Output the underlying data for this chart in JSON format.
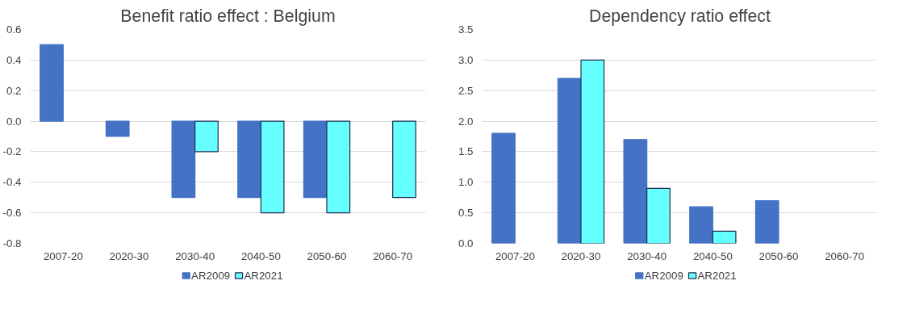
{
  "chart_data": [
    {
      "type": "bar",
      "title": "Benefit ratio effect : Belgium",
      "categories": [
        "2007-20",
        "2020-30",
        "2030-40",
        "2040-50",
        "2050-60",
        "2060-70"
      ],
      "series": [
        {
          "name": "AR2009",
          "color": "#4472c4",
          "values": [
            0.5,
            -0.1,
            -0.5,
            -0.5,
            -0.5,
            null
          ]
        },
        {
          "name": "AR2021",
          "color": "#66ffff",
          "values": [
            null,
            null,
            -0.2,
            -0.6,
            -0.6,
            -0.5
          ]
        }
      ],
      "ylim": [
        -0.8,
        0.6
      ],
      "yticks": [
        {
          "value": -0.8,
          "label": "-0.8"
        },
        {
          "value": -0.6,
          "label": "-0.6"
        },
        {
          "value": -0.4,
          "label": "-0.4"
        },
        {
          "value": -0.2,
          "label": "-0.2"
        },
        {
          "value": 0,
          "label": "0.0"
        },
        {
          "value": 0.2,
          "label": "0.2"
        },
        {
          "value": 0.4,
          "label": "0.4"
        },
        {
          "value": 0.6,
          "label": "0.6"
        }
      ],
      "grid": "y",
      "legend": "bottom"
    },
    {
      "type": "bar",
      "title": "Dependency ratio effect",
      "categories": [
        "2007-20",
        "2020-30",
        "2030-40",
        "2040-50",
        "2050-60",
        "2060-70"
      ],
      "series": [
        {
          "name": "AR2009",
          "color": "#4472c4",
          "values": [
            1.8,
            2.7,
            1.7,
            0.6,
            0.7,
            null
          ]
        },
        {
          "name": "AR2021",
          "color": "#66ffff",
          "values": [
            null,
            3.0,
            0.9,
            0.2,
            null,
            null
          ]
        }
      ],
      "ylim": [
        0,
        3.5
      ],
      "yticks": [
        {
          "value": 0,
          "label": "0.0"
        },
        {
          "value": 0.5,
          "label": "0.5"
        },
        {
          "value": 1,
          "label": "1.0"
        },
        {
          "value": 1.5,
          "label": "1.5"
        },
        {
          "value": 2,
          "label": "2.0"
        },
        {
          "value": 2.5,
          "label": "2.5"
        },
        {
          "value": 3,
          "label": "3.0"
        },
        {
          "value": 3.5,
          "label": "3.5"
        }
      ],
      "grid": "y",
      "legend": "bottom"
    }
  ]
}
